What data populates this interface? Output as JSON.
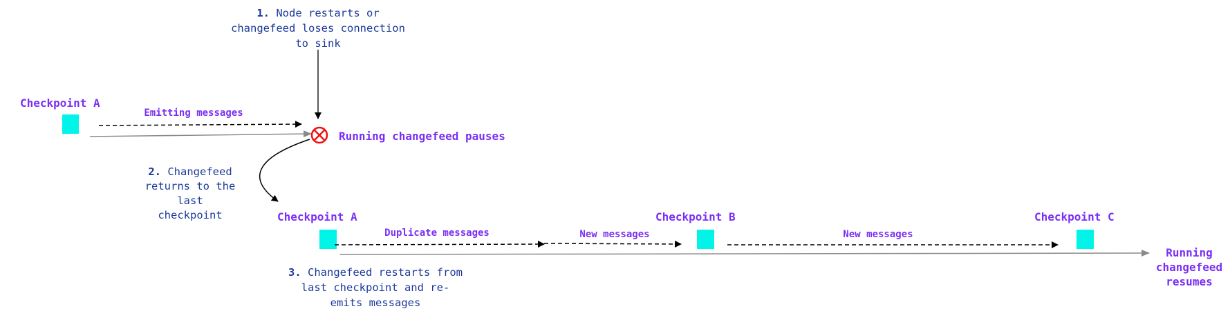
{
  "colors": {
    "label": "#7a2ff5",
    "note": "#1b3a9a",
    "checkpoint": "#00f5e8",
    "error": "#ee1111",
    "timeline": "#8a8a8a"
  },
  "step1": {
    "num": "1.",
    "lines": [
      "Node restarts or",
      "changefeed loses connection",
      "to sink"
    ]
  },
  "step2": {
    "num": "2.",
    "lines": [
      "Changefeed",
      "returns to the",
      "last",
      "checkpoint"
    ]
  },
  "step3": {
    "num": "3.",
    "lines": [
      "Changefeed restarts from",
      "last checkpoint and re-",
      "emits messages"
    ]
  },
  "top_row": {
    "checkpoint": "Checkpoint A",
    "emitting": "Emitting messages",
    "paused": "Running changefeed pauses",
    "error_icon": "x-circle-icon"
  },
  "bottom_row": {
    "checkpoints": [
      "Checkpoint A",
      "Checkpoint B",
      "Checkpoint C"
    ],
    "duplicate": "Duplicate messages",
    "new1": "New messages",
    "new2": "New messages",
    "resumes": [
      "Running",
      "changefeed",
      "resumes"
    ]
  }
}
